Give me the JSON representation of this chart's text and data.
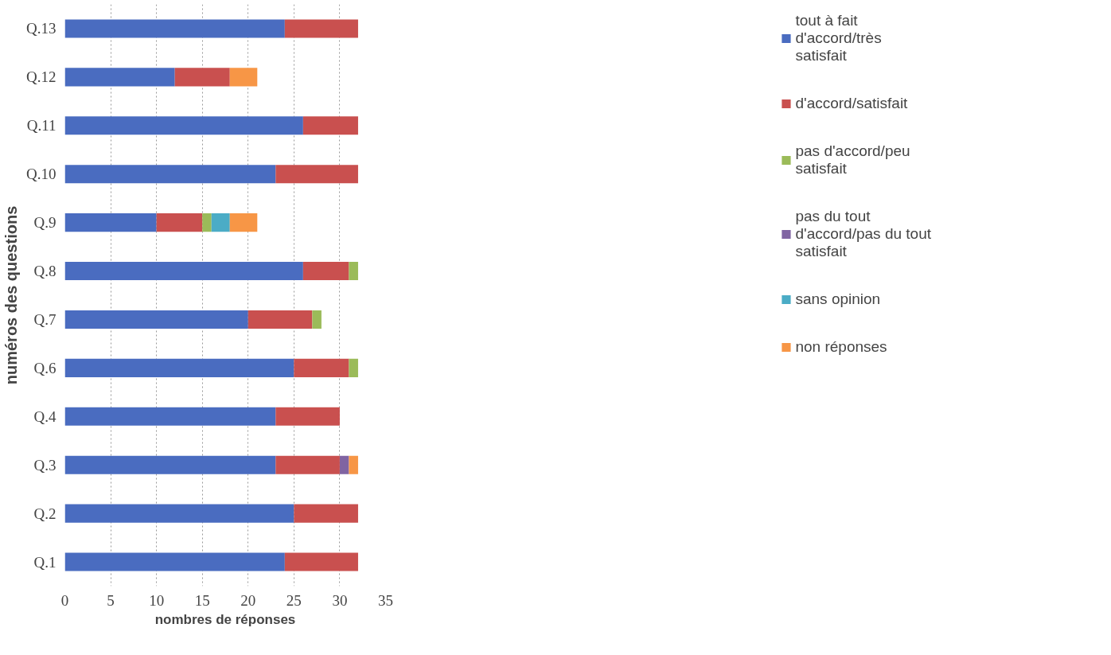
{
  "chart_data": {
    "type": "bar",
    "orientation": "horizontal",
    "stacked": true,
    "xlabel": "nombres de réponses",
    "ylabel": "numéros des questions",
    "categories": [
      "Q.13",
      "Q.12",
      "Q.11",
      "Q.10",
      "Q.9",
      "Q.8",
      "Q.7",
      "Q.6",
      "Q.4",
      "Q.3",
      "Q.2",
      "Q.1"
    ],
    "series": [
      {
        "name": "tout à fait d'accord/très satisfait",
        "color": "#4a6cc0",
        "values": [
          24,
          12,
          26,
          23,
          10,
          26,
          20,
          25,
          23,
          23,
          25,
          24
        ]
      },
      {
        "name": "d'accord/satisfait",
        "color": "#c9504f",
        "values": [
          8,
          6,
          6,
          9,
          5,
          5,
          7,
          6,
          7,
          7,
          7,
          8
        ]
      },
      {
        "name": "pas d'accord/peu satisfait",
        "color": "#9bbb59",
        "values": [
          0,
          0,
          0,
          0,
          1,
          1,
          1,
          1,
          0,
          0,
          0,
          0
        ]
      },
      {
        "name": "pas du tout d'accord/pas du tout satisfait",
        "color": "#8064a2",
        "values": [
          0,
          0,
          0,
          0,
          0,
          0,
          0,
          0,
          0,
          1,
          0,
          0
        ]
      },
      {
        "name": "sans opinion",
        "color": "#4bacc6",
        "values": [
          0,
          0,
          0,
          0,
          2,
          0,
          0,
          0,
          0,
          0,
          0,
          0
        ]
      },
      {
        "name": "non réponses",
        "color": "#f79646",
        "values": [
          0,
          3,
          0,
          0,
          3,
          0,
          0,
          0,
          0,
          1,
          0,
          0
        ]
      }
    ],
    "xlim": [
      0,
      35
    ],
    "xticks": [
      0,
      5,
      10,
      15,
      20,
      25,
      30,
      35
    ],
    "grid": "x",
    "legend": "right"
  }
}
